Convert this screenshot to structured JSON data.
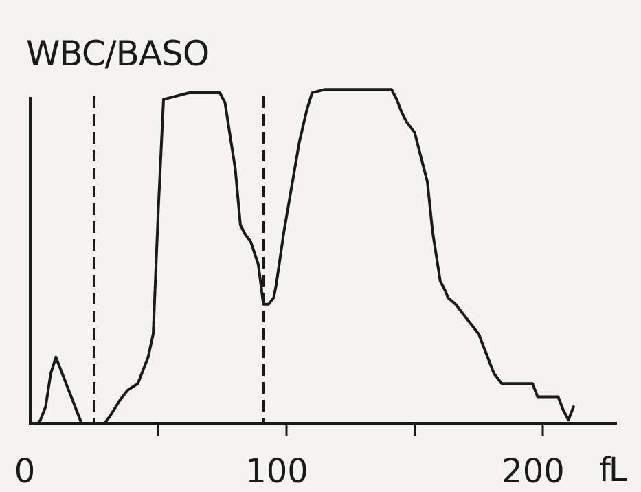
{
  "chart_data": {
    "type": "line",
    "title": "WBC/BASO",
    "xlabel": "fL",
    "ylabel": "",
    "xlim": [
      0,
      260
    ],
    "ylim": [
      0,
      100
    ],
    "grid": false,
    "x_ticks": [
      {
        "value": 0,
        "label": "0",
        "mark": false
      },
      {
        "value": 50,
        "label": "",
        "mark": true
      },
      {
        "value": 100,
        "label": "100",
        "mark": true
      },
      {
        "value": 150,
        "label": "",
        "mark": true
      },
      {
        "value": 200,
        "label": "200",
        "mark": true
      }
    ],
    "dividers": [
      25,
      91
    ],
    "series": [
      {
        "x": [
          0,
          3,
          4,
          6,
          8,
          10,
          15,
          20,
          25,
          29,
          31,
          35,
          38,
          40,
          42,
          44,
          46,
          48,
          50,
          52,
          62,
          68,
          74,
          76,
          78,
          80,
          82,
          84,
          86,
          89,
          91,
          93,
          95,
          96,
          99,
          105,
          108,
          110,
          115,
          125,
          135,
          141,
          143,
          145,
          147,
          150,
          155,
          157,
          160,
          162,
          163,
          166,
          170,
          175,
          177,
          181,
          184,
          192,
          196,
          198,
          201,
          206,
          208,
          210,
          212
        ],
        "y": [
          0,
          0,
          1,
          5,
          15,
          20,
          10,
          0,
          0,
          0,
          2,
          7,
          10,
          11,
          12,
          16,
          20,
          27,
          65,
          98,
          100,
          100,
          100,
          97,
          87,
          77,
          60,
          57,
          55,
          48,
          36,
          36,
          38,
          42,
          58,
          85,
          95,
          100,
          101,
          101,
          101,
          101,
          98,
          94,
          91,
          88,
          73,
          58,
          43,
          40,
          38,
          36,
          32,
          27,
          23,
          15,
          12,
          12,
          12,
          8,
          8,
          8,
          4,
          1,
          5
        ]
      }
    ]
  }
}
